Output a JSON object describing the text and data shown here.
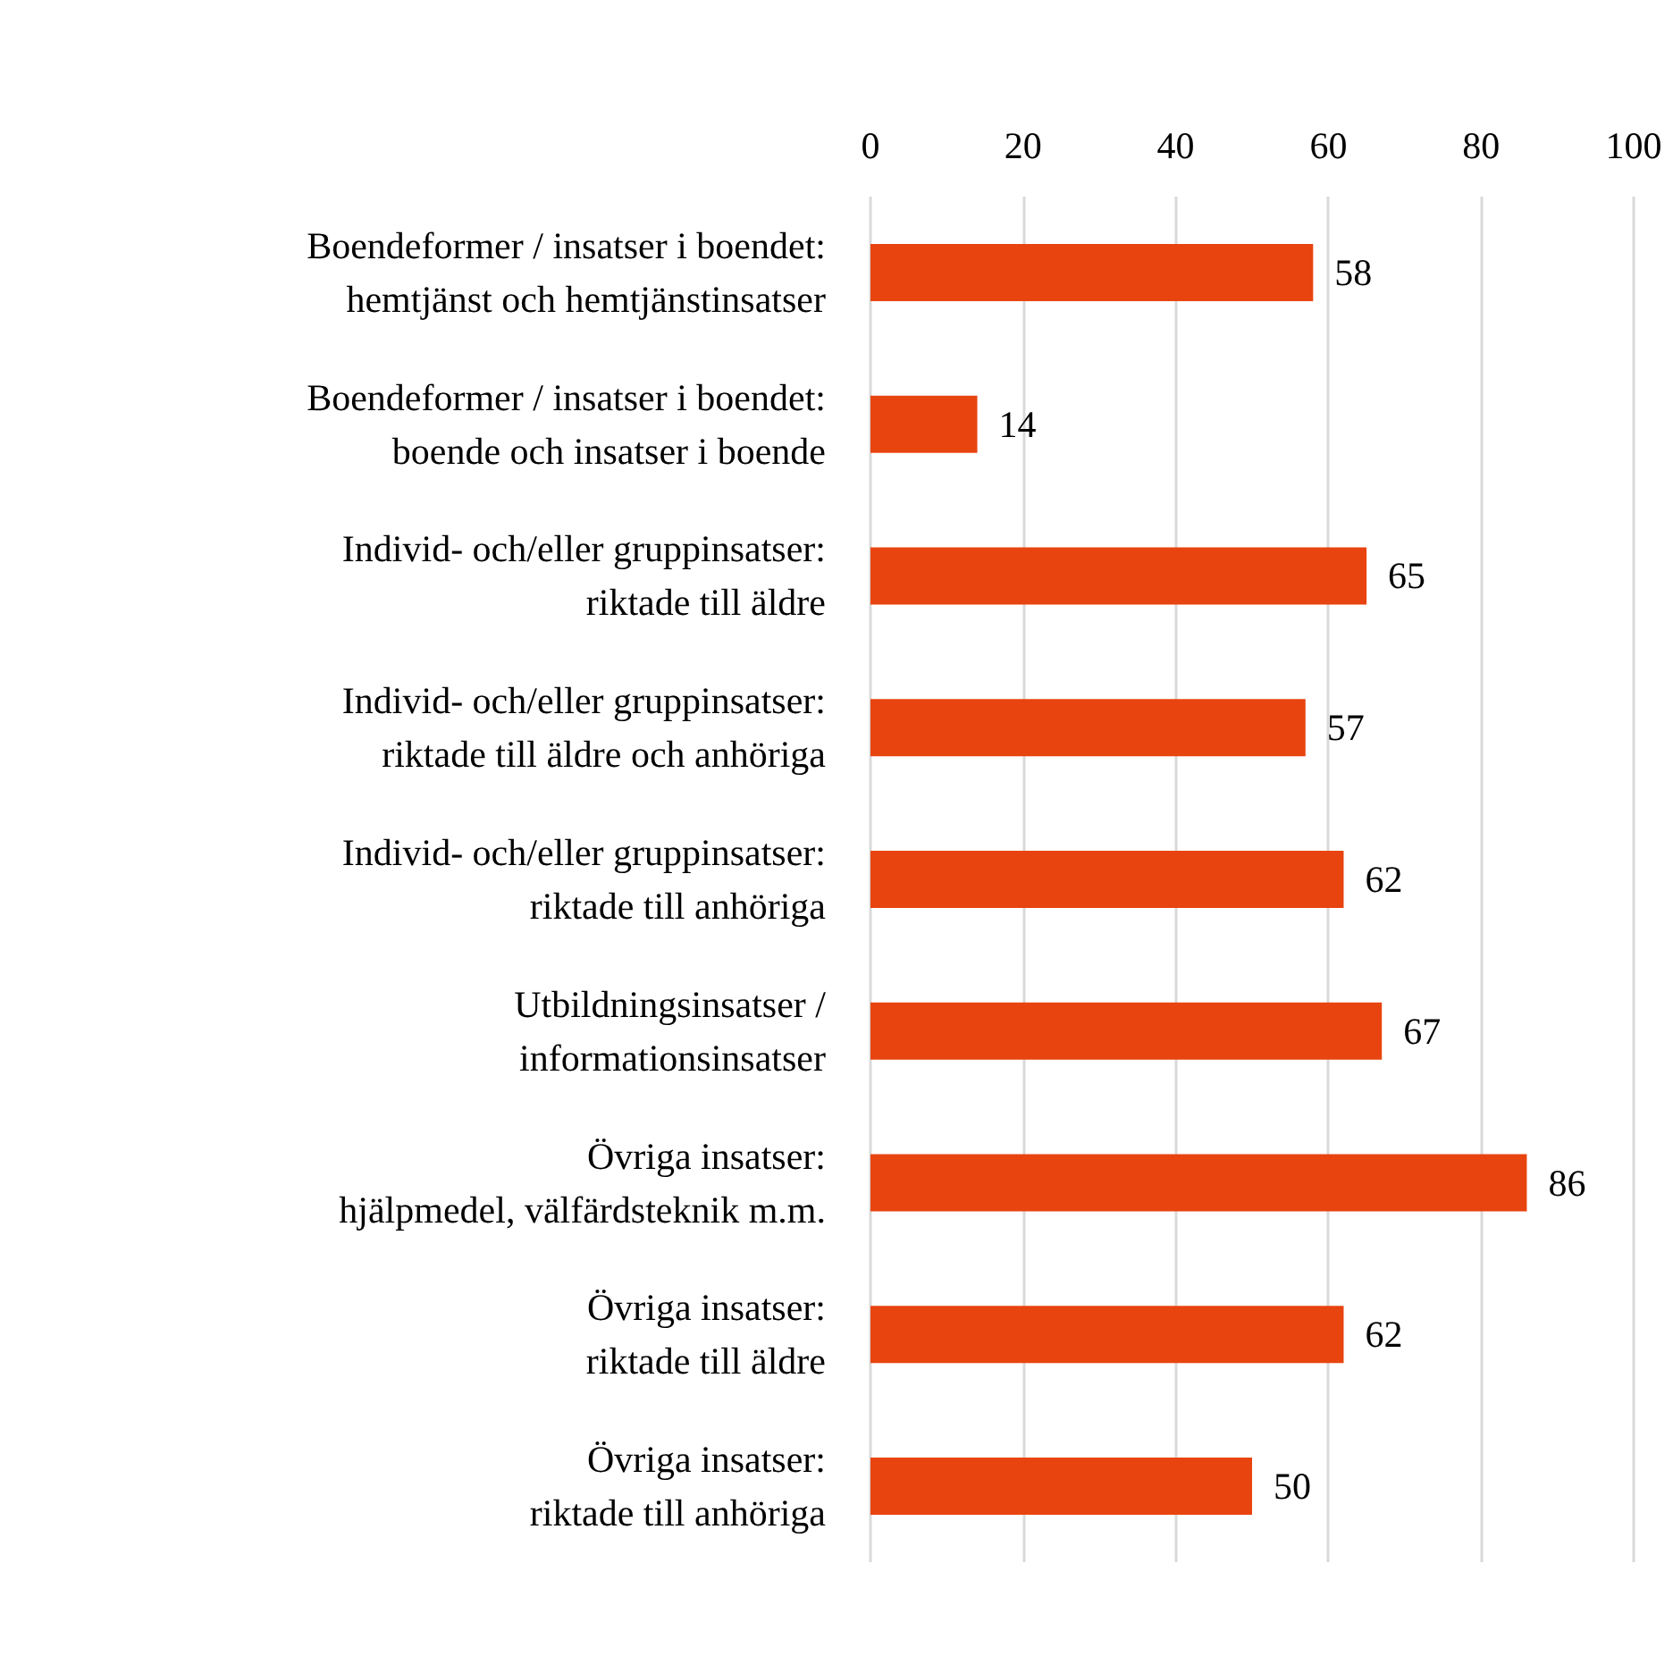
{
  "chart_data": {
    "type": "bar",
    "orientation": "horizontal",
    "categories": [
      "Boendeformer / insatser i boendet:\nhemtjänst och hemtjänstinsatser",
      "Boendeformer / insatser i boendet:\nboende och insatser i boende",
      "Individ- och/eller gruppinsatser:\nriktade till äldre",
      "Individ- och/eller gruppinsatser:\nriktade till äldre och anhöriga",
      "Individ- och/eller gruppinsatser:\nriktade till anhöriga",
      "Utbildningsinsatser /\ninformationsinsatser",
      "Övriga insatser:\nhjälpmedel, välfärdsteknik m.m.",
      "Övriga insatser:\nriktade till äldre",
      "Övriga insatser:\nriktade till anhöriga"
    ],
    "values": [
      58,
      14,
      65,
      57,
      62,
      67,
      86,
      62,
      50
    ],
    "color": "#e8440f",
    "xlim": [
      0,
      100
    ],
    "xticks": [
      0,
      20,
      40,
      60,
      80,
      100
    ],
    "grid": "x",
    "data_labels": true
  }
}
